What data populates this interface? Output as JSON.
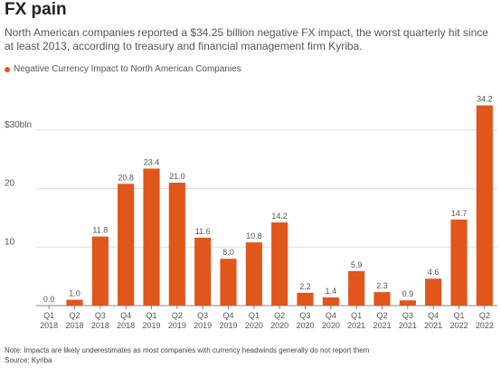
{
  "title": "FX pain",
  "subtitle": "North American companies reported a $34.25 billion negative FX impact, the worst quarterly hit since at least 2013, according to treasury and financial management firm Kyriba.",
  "note": "Note: Impacts are likely underestimates as most companies with currency headwinds generally do not report them",
  "source": "Source: Kyriba",
  "colors": {
    "bar": "#e0561b",
    "grid": "#dddddd",
    "axis": "#888888",
    "text": "#555555"
  },
  "chart_data": {
    "type": "bar",
    "categories": [
      [
        "Q1",
        "2018"
      ],
      [
        "Q2",
        "2018"
      ],
      [
        "Q3",
        "2018"
      ],
      [
        "Q4",
        "2018"
      ],
      [
        "Q1",
        "2019"
      ],
      [
        "Q2",
        "2019"
      ],
      [
        "Q3",
        "2019"
      ],
      [
        "Q4",
        "2019"
      ],
      [
        "Q1",
        "2020"
      ],
      [
        "Q2",
        "2020"
      ],
      [
        "Q3",
        "2020"
      ],
      [
        "Q4",
        "2020"
      ],
      [
        "Q1",
        "2021"
      ],
      [
        "Q2",
        "2021"
      ],
      [
        "Q3",
        "2021"
      ],
      [
        "Q4",
        "2021"
      ],
      [
        "Q1",
        "2022"
      ],
      [
        "Q2",
        "2022"
      ]
    ],
    "series": [
      {
        "name": "Negative Currency Impact to North American Companies",
        "values": [
          0.0,
          1.0,
          11.8,
          20.8,
          23.4,
          21.0,
          11.6,
          8.0,
          10.8,
          14.2,
          2.2,
          1.4,
          5.9,
          2.3,
          0.9,
          4.6,
          14.7,
          34.2
        ],
        "labels": [
          "0.0",
          "1.0",
          "11.8",
          "20.8",
          "23.4",
          "21.0",
          "11.6",
          "8.0",
          "10.8",
          "14.2",
          "2.2",
          "1.4",
          "5.9",
          "2.3",
          "0.9",
          "4.6",
          "14.7",
          "34.2"
        ]
      }
    ],
    "yticks": [
      {
        "value": 10,
        "label": "10"
      },
      {
        "value": 20,
        "label": "20"
      },
      {
        "value": 30,
        "label": "$30bln"
      }
    ],
    "ylim": [
      0,
      34.2
    ],
    "grid": true,
    "legend": "top-left"
  }
}
